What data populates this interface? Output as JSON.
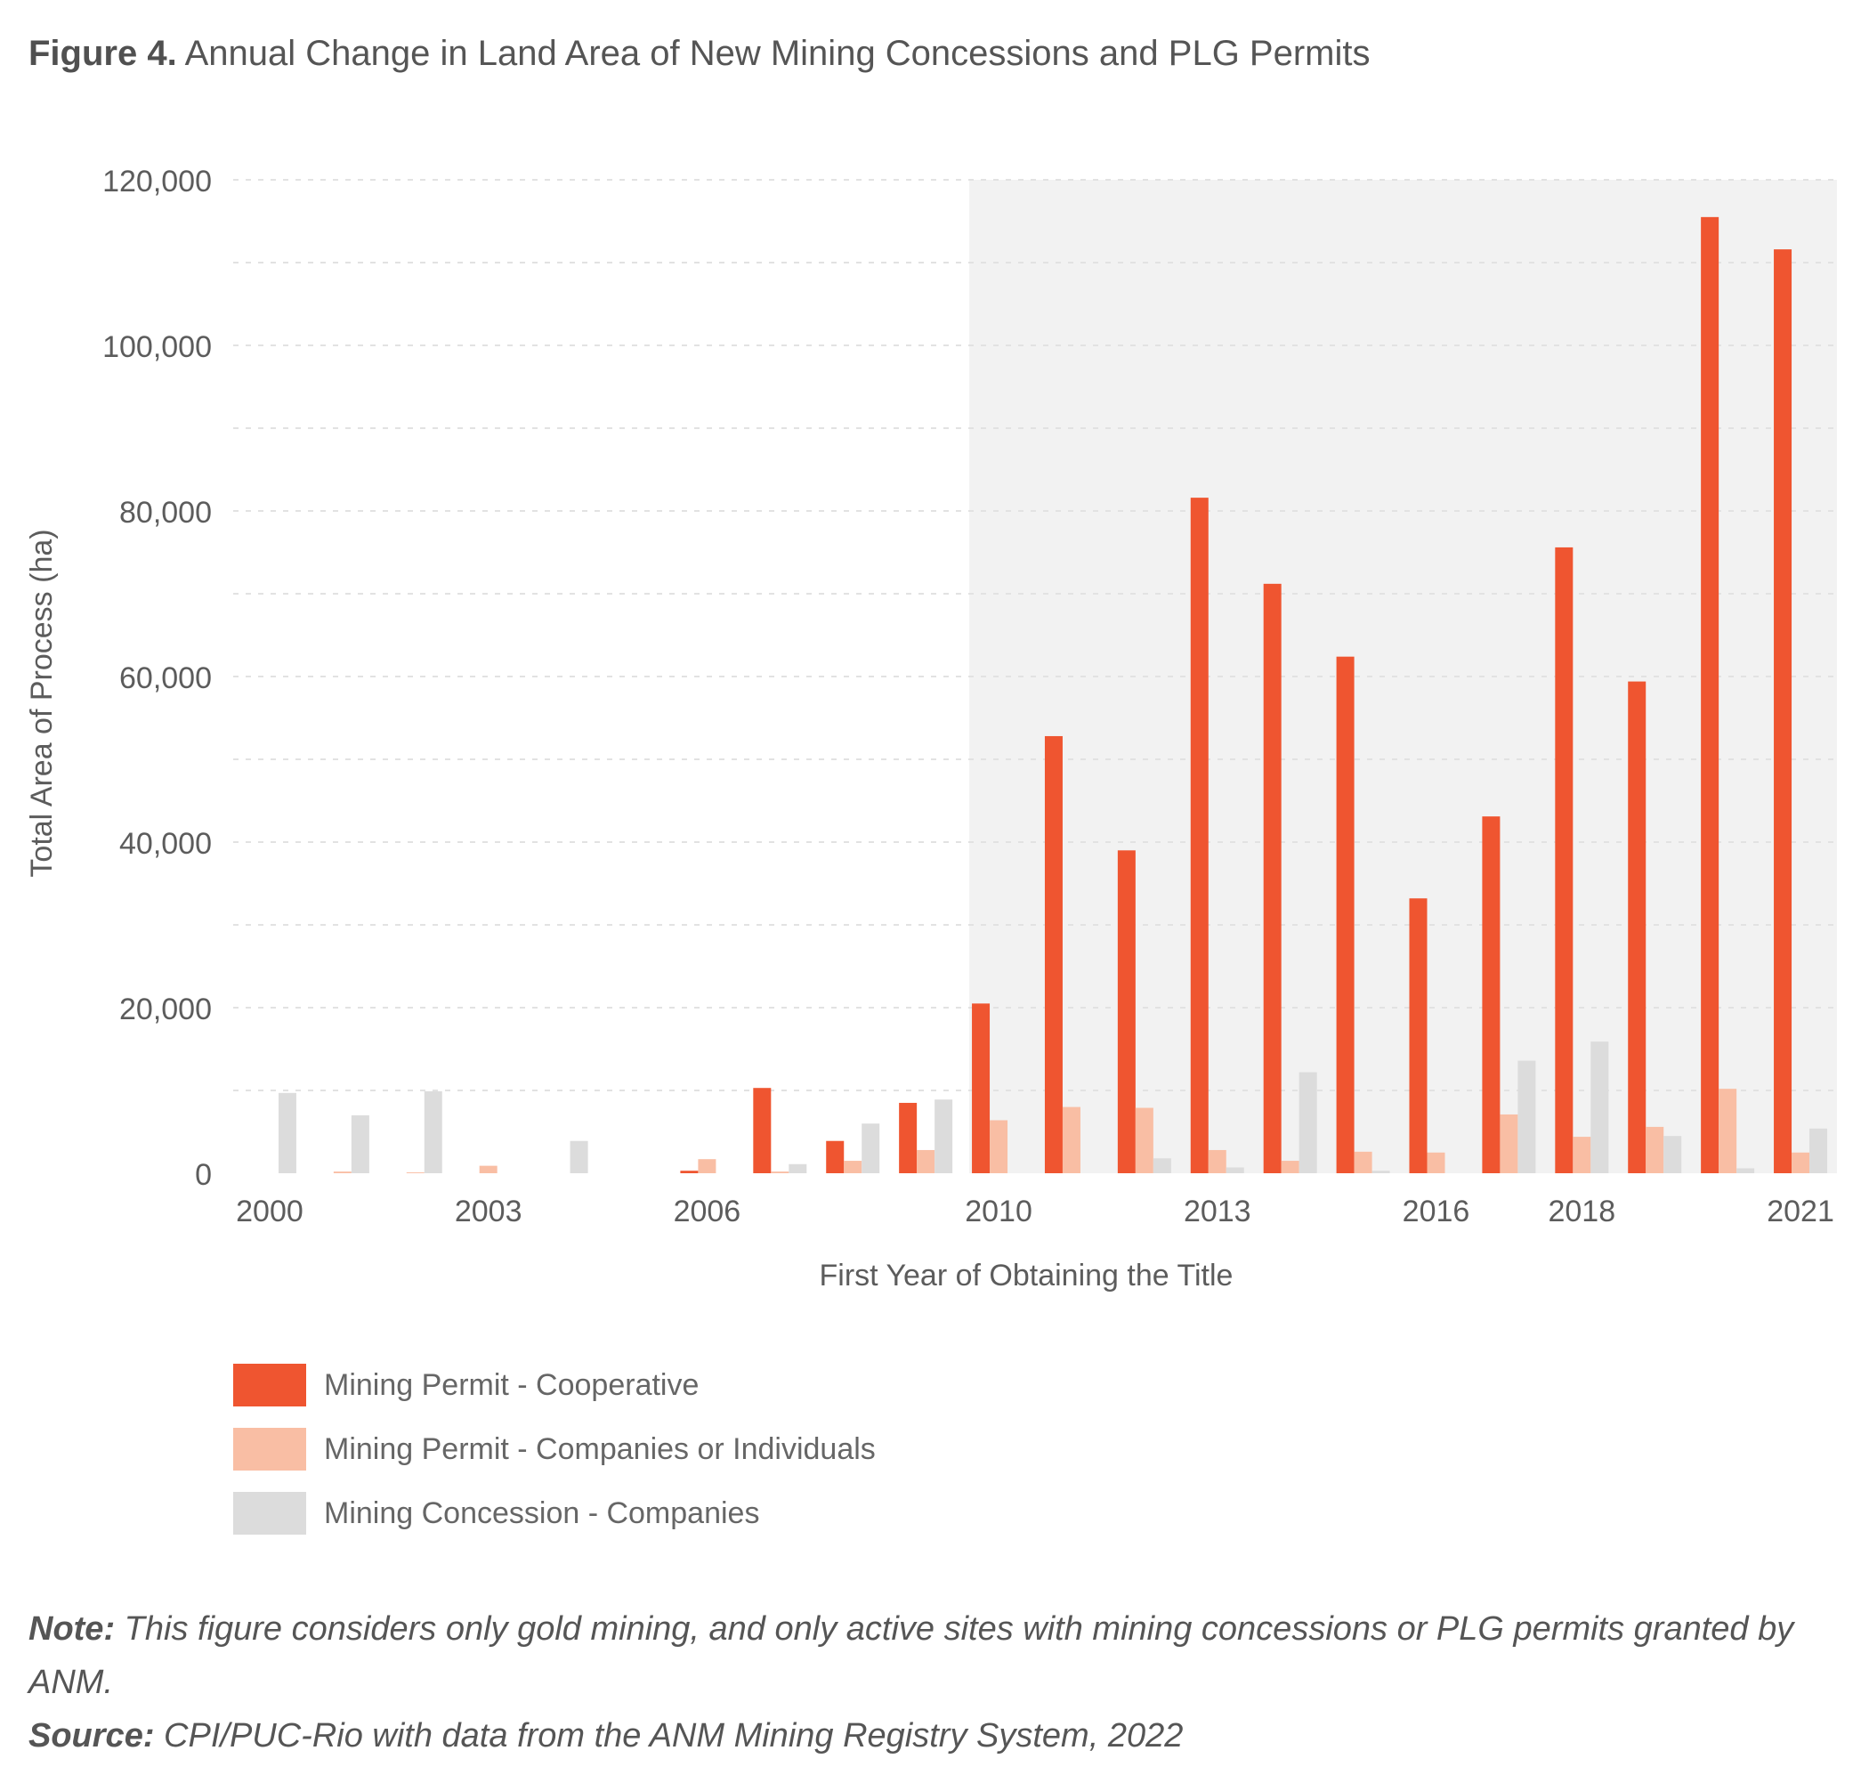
{
  "figure": {
    "label": "Figure 4.",
    "title": "Annual Change in Land Area of New Mining Concessions and PLG Permits"
  },
  "chart_data": {
    "type": "bar",
    "xlabel": "First Year of Obtaining the Title",
    "ylabel": "Total Area of Process (ha)",
    "ylim": [
      0,
      120000
    ],
    "y_ticks": [
      0,
      20000,
      40000,
      60000,
      80000,
      100000,
      120000
    ],
    "y_tick_labels": [
      "0",
      "20,000",
      "40,000",
      "60,000",
      "80,000",
      "100,000",
      "120,000"
    ],
    "categories": [
      2000,
      2001,
      2002,
      2003,
      2004,
      2005,
      2006,
      2007,
      2008,
      2009,
      2010,
      2011,
      2012,
      2013,
      2014,
      2015,
      2016,
      2017,
      2018,
      2019,
      2020,
      2021
    ],
    "x_tick_labels": [
      "2000",
      "2003",
      "2006",
      "2010",
      "2013",
      "2016",
      "2018",
      "2021"
    ],
    "shaded_from": 2010,
    "grid": "horizontal dashed",
    "legend_position": "bottom",
    "series": [
      {
        "name": "Mining Permit - Cooperative",
        "color": "#ef5530",
        "values": [
          0,
          0,
          0,
          0,
          0,
          0,
          300,
          10300,
          3900,
          8500,
          20500,
          52800,
          39000,
          81600,
          71200,
          62400,
          33200,
          43100,
          75600,
          59400,
          115500,
          111600
        ]
      },
      {
        "name": "Mining Permit - Companies or Individuals",
        "color": "#f9bea4",
        "values": [
          0,
          200,
          100,
          900,
          0,
          0,
          1700,
          200,
          1500,
          2800,
          6400,
          8000,
          7900,
          2800,
          1500,
          2600,
          2500,
          7100,
          4400,
          5600,
          10200,
          2500
        ]
      },
      {
        "name": "Mining Concession - Companies",
        "color": "#dcdcdc",
        "values": [
          9700,
          7000,
          9900,
          0,
          3900,
          0,
          0,
          1100,
          6000,
          8900,
          0,
          0,
          1800,
          700,
          12200,
          300,
          0,
          13600,
          15900,
          4500,
          600,
          5400
        ]
      }
    ]
  },
  "legend": [
    {
      "label": "Mining Permit - Cooperative",
      "color": "#ef5530"
    },
    {
      "label": "Mining Permit - Companies or Individuals",
      "color": "#f9bea4"
    },
    {
      "label": "Mining Concession - Companies",
      "color": "#dcdcdc"
    }
  ],
  "note": {
    "label": "Note:",
    "text": " This figure considers only gold mining, and only active sites with mining concessions or PLG permits granted by ANM."
  },
  "source": {
    "label": "Source:",
    "text": " CPI/PUC-Rio with data from the ANM Mining Registry System, 2022"
  }
}
